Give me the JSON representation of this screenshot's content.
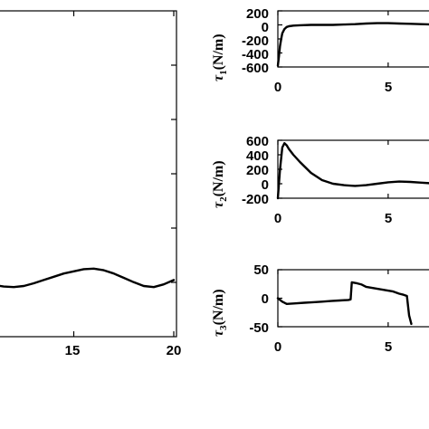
{
  "chart_data": [
    {
      "type": "line",
      "title": "",
      "xlabel": "",
      "ylabel": "",
      "xlim": [
        10,
        20
      ],
      "x_ticks": [
        "15",
        "20"
      ],
      "series": [
        {
          "x": [
            10.0,
            10.5,
            11.0,
            11.5,
            12.0,
            12.5,
            13.0,
            13.5,
            14.0,
            14.5,
            15.0,
            15.5,
            16.0,
            16.5,
            17.0,
            17.5,
            18.0,
            18.5,
            19.0,
            19.5,
            20.0
          ],
          "y": [
            0.0,
            -0.05,
            -0.15,
            -0.3,
            -0.35,
            -0.25,
            0.0,
            0.3,
            0.6,
            0.9,
            1.1,
            1.3,
            1.35,
            1.2,
            0.9,
            0.5,
            0.1,
            -0.25,
            -0.35,
            -0.1,
            0.3
          ]
        }
      ]
    },
    {
      "type": "line",
      "ylabel_sym": "τ",
      "ylabel_sub": "1",
      "ylabel_unit": "(N/m)",
      "xlim": [
        0,
        8
      ],
      "ylim": [
        -600,
        200
      ],
      "x_ticks": [
        "0",
        "5"
      ],
      "y_ticks": [
        "200",
        "0",
        "-200",
        "-400",
        "-600"
      ],
      "series": [
        {
          "x": [
            0.0,
            0.05,
            0.1,
            0.15,
            0.2,
            0.3,
            0.4,
            0.5,
            0.7,
            1.0,
            1.5,
            2.0,
            2.5,
            3.0,
            3.5,
            4.0,
            4.5,
            5.0,
            5.5,
            6.0,
            6.5,
            7.0,
            7.5,
            8.0
          ],
          "y": [
            -580,
            -450,
            -300,
            -200,
            -120,
            -60,
            -30,
            -20,
            -10,
            -5,
            0,
            0,
            0,
            5,
            10,
            20,
            25,
            25,
            20,
            15,
            10,
            5,
            0,
            0
          ]
        }
      ]
    },
    {
      "type": "line",
      "ylabel_sym": "τ",
      "ylabel_sub": "2",
      "ylabel_unit": "(N/m)",
      "xlim": [
        0,
        8
      ],
      "ylim": [
        -200,
        600
      ],
      "x_ticks": [
        "0",
        "5"
      ],
      "y_ticks": [
        "600",
        "400",
        "200",
        "0",
        "-200"
      ],
      "series": [
        {
          "x": [
            0.0,
            0.1,
            0.2,
            0.3,
            0.4,
            0.5,
            0.7,
            1.0,
            1.5,
            2.0,
            2.5,
            3.0,
            3.5,
            4.0,
            4.5,
            5.0,
            5.5,
            6.0,
            6.5,
            7.0,
            7.5,
            8.0
          ],
          "y": [
            -200,
            200,
            500,
            560,
            530,
            480,
            400,
            300,
            150,
            50,
            0,
            -20,
            -30,
            -20,
            0,
            20,
            30,
            25,
            15,
            5,
            0,
            0
          ]
        }
      ]
    },
    {
      "type": "line",
      "ylabel_sym": "τ",
      "ylabel_sub": "3",
      "ylabel_unit": "(N/m)",
      "xlim": [
        0,
        8
      ],
      "ylim": [
        -50,
        50
      ],
      "x_ticks": [
        "0",
        "5"
      ],
      "y_ticks": [
        "50",
        "0",
        "-50"
      ],
      "series": [
        {
          "x": [
            0.0,
            0.2,
            0.4,
            0.8,
            1.2,
            1.6,
            2.0,
            2.4,
            2.8,
            3.2,
            3.3,
            3.35,
            3.6,
            3.8,
            4.0,
            4.3,
            4.6,
            4.9,
            5.2,
            5.5,
            5.7,
            5.85,
            5.95,
            6.05
          ],
          "y": [
            0,
            -6,
            -10,
            -9,
            -8,
            -7,
            -6,
            -5,
            -4,
            -3,
            -2,
            28,
            26,
            24,
            20,
            18,
            16,
            14,
            12,
            8,
            6,
            4,
            -30,
            -45
          ]
        }
      ]
    }
  ]
}
